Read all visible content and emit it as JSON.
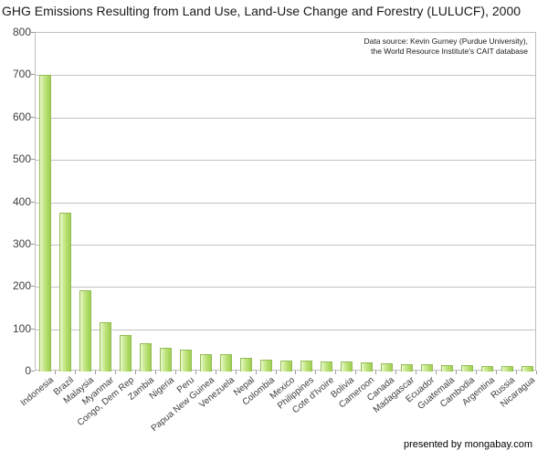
{
  "title": "GHG Emissions Resulting from Land Use, Land-Use Change and Forestry (LULUCF), 2000",
  "source_note": {
    "line1": "Data source: Kevin Gurney (Purdue University),",
    "line2": "the World Resource Institute's CAIT database"
  },
  "footer": "presented by mongabay.com",
  "colors": {
    "bar_fill_light": "#eef9d2",
    "bar_fill_mid": "#cdeb96",
    "bar_fill_dark": "#a2d054",
    "bar_border": "#92bd55",
    "gridline": "#c3c3c3",
    "axis": "#9a9a9a",
    "text": "#3f3f3f"
  },
  "chart_data": {
    "type": "bar",
    "title": "GHG Emissions Resulting from Land Use, Land-Use Change and Forestry (LULUCF), 2000",
    "xlabel": "",
    "ylabel": "",
    "ylim": [
      0,
      800
    ],
    "y_ticks": [
      0,
      100,
      200,
      300,
      400,
      500,
      600,
      700,
      800
    ],
    "grid": true,
    "legend": false,
    "categories": [
      "Indonesia",
      "Brazil",
      "Malaysia",
      "Myanmar",
      "Congo, Dem Rep",
      "Zambia",
      "Nigeria",
      "Peru",
      "Papua New Guinea",
      "Venezuela",
      "Nepal",
      "Colombia",
      "Mexico",
      "Philippines",
      "Cote d'Ivoire",
      "Bolivia",
      "Cameroon",
      "Canada",
      "Madagascar",
      "Ecuador",
      "Guatemala",
      "Cambodia",
      "Argentina",
      "Russia",
      "Nicaragua"
    ],
    "values": [
      700,
      375,
      192,
      116,
      87,
      66,
      55,
      52,
      41,
      40,
      33,
      29,
      26,
      25,
      24,
      23,
      21,
      19,
      17,
      17,
      15,
      15,
      14,
      14,
      13
    ]
  }
}
